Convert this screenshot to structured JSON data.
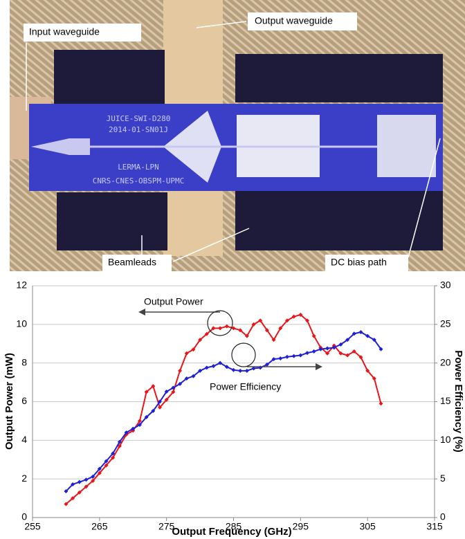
{
  "photo": {
    "labels": [
      "Input waveguide",
      "Output waveguide",
      "Beamleads",
      "DC bias path"
    ],
    "chip_text": [
      "JUICE-SWI-D280",
      "2014-01-SN01J",
      "LERMA-LPN",
      "CNRS-CNES-OBSPM-UPMC"
    ]
  },
  "chart_data": {
    "type": "line",
    "x_label": "Output Frequency (GHz)",
    "y_label": "Output Power (mW)",
    "y2_label": "Power Efficiency (%)",
    "annotations": [
      "Output Power",
      "Power Efficiency"
    ],
    "x": [
      260,
      261,
      262,
      263,
      264,
      265,
      266,
      267,
      268,
      269,
      270,
      271,
      272,
      273,
      274,
      275,
      276,
      277,
      278,
      279,
      280,
      281,
      282,
      283,
      284,
      285,
      286,
      287,
      288,
      289,
      290,
      291,
      292,
      293,
      294,
      295,
      296,
      297,
      298,
      299,
      300,
      301,
      302,
      303,
      304,
      305,
      306,
      307
    ],
    "series": [
      {
        "name": "Output Power",
        "color": "#e8161b",
        "axis": "y",
        "values": [
          0.7,
          1.0,
          1.3,
          1.6,
          1.9,
          2.3,
          2.7,
          3.1,
          3.7,
          4.3,
          4.5,
          5.0,
          6.5,
          6.8,
          5.7,
          6.1,
          6.5,
          7.6,
          8.5,
          8.7,
          9.2,
          9.5,
          9.8,
          9.8,
          9.9,
          9.8,
          9.7,
          9.4,
          10.0,
          10.2,
          9.7,
          9.2,
          9.8,
          10.2,
          10.4,
          10.5,
          10.2,
          9.4,
          8.8,
          8.5,
          8.9,
          8.5,
          8.4,
          8.6,
          8.3,
          7.6,
          7.2,
          5.9
        ]
      },
      {
        "name": "Power Efficiency",
        "color": "#1f1fd6",
        "axis": "y2",
        "values": [
          3.4,
          4.3,
          4.6,
          4.9,
          5.3,
          6.3,
          7.3,
          8.3,
          9.8,
          11,
          11.5,
          12,
          13,
          13.8,
          15,
          16.3,
          16.8,
          17.3,
          18,
          18.3,
          19,
          19.4,
          19.6,
          20,
          19.5,
          19.1,
          19,
          19,
          19.3,
          19.4,
          19.8,
          20.5,
          20.6,
          20.8,
          20.9,
          21,
          21.3,
          21.5,
          21.8,
          21.9,
          22,
          22.4,
          23,
          23.8,
          24,
          23.5,
          23,
          21.8
        ]
      }
    ],
    "xlim": [
      255,
      315
    ],
    "xticks": [
      255,
      265,
      275,
      285,
      295,
      305,
      315
    ],
    "ylim": [
      0,
      12
    ],
    "yticks": [
      0,
      2,
      4,
      6,
      8,
      10,
      12
    ],
    "y2lim": [
      0,
      30
    ],
    "y2ticks": [
      0,
      5,
      10,
      15,
      20,
      25,
      30
    ],
    "grid": true
  }
}
